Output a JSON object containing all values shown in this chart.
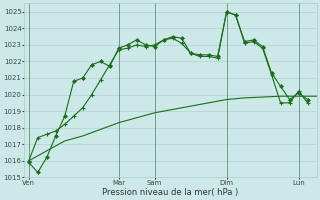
{
  "xlabel": "Pression niveau de la mer( hPa )",
  "bg_color": "#cce8e8",
  "grid_color": "#aacccc",
  "line_color": "#1a6e1a",
  "ylim": [
    1015,
    1025.5
  ],
  "yticks": [
    1015,
    1016,
    1017,
    1018,
    1019,
    1020,
    1021,
    1022,
    1023,
    1024,
    1025
  ],
  "day_labels": [
    "Ven",
    "Mar",
    "Sam",
    "Dim",
    "Lun"
  ],
  "day_positions": [
    0,
    10,
    14,
    22,
    30
  ],
  "xlim": [
    -0.5,
    32
  ],
  "series1_x": [
    0,
    1,
    2,
    3,
    4,
    5,
    6,
    7,
    8,
    9,
    10,
    11,
    12,
    13,
    14,
    15,
    16,
    17,
    18,
    19,
    20,
    21,
    22,
    23,
    24,
    25,
    26,
    27,
    28,
    29,
    30,
    31
  ],
  "series1_y": [
    1015.9,
    1015.3,
    1016.2,
    1017.5,
    1018.7,
    1020.8,
    1021.0,
    1021.8,
    1022.0,
    1021.7,
    1022.8,
    1023.0,
    1023.3,
    1023.0,
    1022.9,
    1023.3,
    1023.5,
    1023.4,
    1022.5,
    1022.4,
    1022.4,
    1022.3,
    1025.0,
    1024.8,
    1023.2,
    1023.3,
    1022.9,
    1021.3,
    1020.5,
    1019.7,
    1020.1,
    1019.7
  ],
  "series2_x": [
    0,
    1,
    2,
    3,
    4,
    5,
    6,
    7,
    8,
    9,
    10,
    11,
    12,
    13,
    14,
    15,
    16,
    17,
    18,
    19,
    20,
    21,
    22,
    23,
    24,
    25,
    26,
    27,
    28,
    29,
    30,
    31
  ],
  "series2_y": [
    1016.0,
    1017.4,
    1017.6,
    1017.8,
    1018.2,
    1018.7,
    1019.2,
    1020.0,
    1020.9,
    1021.8,
    1022.7,
    1022.8,
    1023.0,
    1022.9,
    1023.0,
    1023.3,
    1023.4,
    1023.1,
    1022.5,
    1022.3,
    1022.3,
    1022.2,
    1025.0,
    1024.8,
    1023.1,
    1023.2,
    1022.8,
    1021.2,
    1019.5,
    1019.5,
    1020.2,
    1019.5
  ],
  "series3_x": [
    0,
    2,
    4,
    6,
    8,
    10,
    12,
    14,
    16,
    18,
    20,
    22,
    24,
    26,
    28,
    30,
    32
  ],
  "series3_y": [
    1016.0,
    1016.6,
    1017.2,
    1017.5,
    1017.9,
    1018.3,
    1018.6,
    1018.9,
    1019.1,
    1019.3,
    1019.5,
    1019.7,
    1019.8,
    1019.85,
    1019.9,
    1019.9,
    1019.9
  ]
}
